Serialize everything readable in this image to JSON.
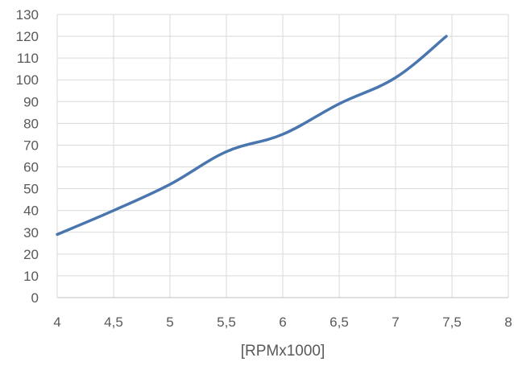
{
  "chart_data": {
    "type": "line",
    "title": "",
    "xlabel": "[RPMx1000]",
    "ylabel": "",
    "x_ticks": [
      "4",
      "4,5",
      "5",
      "5,5",
      "6",
      "6,5",
      "7",
      "7,5",
      "8"
    ],
    "y_ticks": [
      "0",
      "10",
      "20",
      "30",
      "40",
      "50",
      "60",
      "70",
      "80",
      "90",
      "100",
      "110",
      "120",
      "130"
    ],
    "xlim": [
      4,
      8
    ],
    "ylim": [
      0,
      130
    ],
    "grid": true,
    "legend": "none",
    "series": [
      {
        "color": "#4a76b0",
        "points": [
          {
            "x": 4.0,
            "y": 29
          },
          {
            "x": 4.5,
            "y": 40
          },
          {
            "x": 5.0,
            "y": 52
          },
          {
            "x": 5.5,
            "y": 67
          },
          {
            "x": 6.0,
            "y": 75
          },
          {
            "x": 6.5,
            "y": 89
          },
          {
            "x": 7.0,
            "y": 101
          },
          {
            "x": 7.45,
            "y": 120
          }
        ]
      }
    ]
  }
}
